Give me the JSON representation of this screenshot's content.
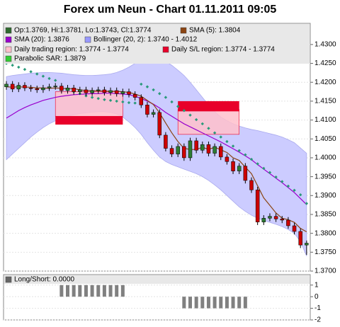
{
  "chart_data": [
    {
      "type": "candlestick",
      "title": "Forex um Neun - Chart 01.11.2011 09:05",
      "legend": [
        {
          "label": "Op:1.3769, Hi:1.3781, Lo:1.3743, Cl:1.3774",
          "color": "#2e6b2e"
        },
        {
          "label": "SMA (5): 1.3804",
          "color": "#8b4513"
        },
        {
          "label": "SMA (20): 1.3876",
          "color": "#9900cc"
        },
        {
          "label": "Bollinger (20, 2): 1.3740 - 1.4012",
          "color": "#9999ff"
        },
        {
          "label": "Daily trading region: 1.3774 - 1.3774",
          "color": "#ffc0cb"
        },
        {
          "label": "Daily S/L region: 1.3774 - 1.3774",
          "color": "#e8002a"
        },
        {
          "label": "Parabolic SAR: 1.3879",
          "color": "#33cc33"
        }
      ],
      "open": [
        1.4188,
        1.4195,
        1.4182,
        1.4192,
        1.4185,
        1.4183,
        1.418,
        1.4185,
        1.4188,
        1.419,
        1.4178,
        1.4185,
        1.4175,
        1.418,
        1.4172,
        1.4178,
        1.418,
        1.4173,
        1.4178,
        1.417,
        1.4175,
        1.4168,
        1.416,
        1.414,
        1.4115,
        1.412,
        1.406,
        1.4025,
        1.401,
        1.403,
        1.4,
        1.4045,
        1.402,
        1.4035,
        1.4012,
        1.403,
        1.4002,
        1.399,
        1.3965,
        1.3978,
        1.394,
        1.3915,
        1.383,
        1.384,
        1.3845,
        1.3838,
        1.3835,
        1.382,
        1.3805,
        1.3769
      ],
      "high": [
        1.4203,
        1.4203,
        1.42,
        1.42,
        1.4193,
        1.4191,
        1.4193,
        1.4196,
        1.4198,
        1.4198,
        1.4193,
        1.4193,
        1.4188,
        1.4188,
        1.4186,
        1.4188,
        1.4188,
        1.4186,
        1.4186,
        1.4183,
        1.4183,
        1.4176,
        1.4168,
        1.4148,
        1.4128,
        1.4128,
        1.4068,
        1.4033,
        1.4038,
        1.4038,
        1.4053,
        1.4053,
        1.4043,
        1.4043,
        1.4038,
        1.4038,
        1.401,
        1.3998,
        1.3986,
        1.3986,
        1.3948,
        1.3923,
        1.3848,
        1.3853,
        1.3853,
        1.3846,
        1.3843,
        1.3828,
        1.3813,
        1.3781
      ],
      "low": [
        1.418,
        1.4174,
        1.4174,
        1.4177,
        1.4175,
        1.4172,
        1.4172,
        1.4177,
        1.418,
        1.417,
        1.417,
        1.4167,
        1.4167,
        1.4164,
        1.4164,
        1.417,
        1.4165,
        1.4165,
        1.4162,
        1.4162,
        1.416,
        1.4152,
        1.4132,
        1.4107,
        1.4107,
        1.4052,
        1.4017,
        1.4002,
        1.4002,
        1.3992,
        1.3992,
        1.4012,
        1.4012,
        1.4004,
        1.4004,
        1.3994,
        1.3982,
        1.3957,
        1.3957,
        1.3932,
        1.3907,
        1.3822,
        1.3822,
        1.3832,
        1.383,
        1.3827,
        1.3812,
        1.3797,
        1.3761,
        1.3743
      ],
      "close": [
        1.4195,
        1.4182,
        1.4192,
        1.4185,
        1.4183,
        1.418,
        1.4185,
        1.4188,
        1.419,
        1.4178,
        1.4185,
        1.4175,
        1.418,
        1.4172,
        1.4178,
        1.418,
        1.4173,
        1.4178,
        1.417,
        1.4175,
        1.4168,
        1.416,
        1.414,
        1.4115,
        1.412,
        1.406,
        1.4025,
        1.401,
        1.403,
        1.4,
        1.4045,
        1.402,
        1.4035,
        1.4012,
        1.403,
        1.4002,
        1.399,
        1.3965,
        1.3978,
        1.394,
        1.3915,
        1.383,
        1.384,
        1.3845,
        1.3838,
        1.3835,
        1.382,
        1.3805,
        1.3769,
        1.3774
      ],
      "up_color": "#2e7d32",
      "down_color": "#cc0000",
      "sma5": [
        1.4188,
        1.4187,
        1.4188,
        1.4187,
        1.4187,
        1.4185,
        1.4185,
        1.4184,
        1.4185,
        1.4184,
        1.4183,
        1.4183,
        1.418,
        1.4178,
        1.4178,
        1.4177,
        1.4177,
        1.4176,
        1.4176,
        1.4175,
        1.4173,
        1.4169,
        1.4163,
        1.4152,
        1.4141,
        1.4119,
        1.4092,
        1.4066,
        1.4043,
        1.4025,
        1.4022,
        1.4022,
        1.4028,
        1.4022,
        1.4028,
        1.4021,
        1.4014,
        1.4,
        1.3993,
        1.3975,
        1.3958,
        1.3926,
        1.3894,
        1.3874,
        1.3854,
        1.384,
        1.3836,
        1.3829,
        1.3813,
        1.3804
      ],
      "sma20": [
        1.4105,
        1.4115,
        1.4125,
        1.4133,
        1.414,
        1.4146,
        1.4152,
        1.4156,
        1.416,
        1.4163,
        1.4165,
        1.4167,
        1.4168,
        1.4169,
        1.417,
        1.417,
        1.4171,
        1.4171,
        1.417,
        1.4169,
        1.4167,
        1.4163,
        1.4157,
        1.415,
        1.4142,
        1.4132,
        1.412,
        1.411,
        1.41,
        1.409,
        1.4082,
        1.4074,
        1.4066,
        1.4058,
        1.405,
        1.4042,
        1.4033,
        1.4024,
        1.4015,
        1.4005,
        1.3995,
        1.3982,
        1.397,
        1.3958,
        1.3946,
        1.3934,
        1.3921,
        1.3908,
        1.3892,
        1.3876
      ],
      "bb_upper": [
        1.4215,
        1.4218,
        1.422,
        1.4222,
        1.4224,
        1.4225,
        1.4226,
        1.4226,
        1.4225,
        1.4224,
        1.4222,
        1.422,
        1.4219,
        1.4218,
        1.4218,
        1.4219,
        1.422,
        1.4222,
        1.4226,
        1.4232,
        1.424,
        1.425,
        1.4258,
        1.4263,
        1.4265,
        1.4262,
        1.4255,
        1.4245,
        1.4232,
        1.4218,
        1.42,
        1.418,
        1.416,
        1.414,
        1.4122,
        1.4108,
        1.4098,
        1.409,
        1.4084,
        1.4079,
        1.4075,
        1.4072,
        1.4068,
        1.4064,
        1.406,
        1.4055,
        1.4048,
        1.404,
        1.4026,
        1.4012
      ],
      "bb_lower": [
        1.3995,
        1.401,
        1.4025,
        1.404,
        1.4055,
        1.4068,
        1.408,
        1.409,
        1.4098,
        1.4105,
        1.411,
        1.4114,
        1.4117,
        1.4119,
        1.4121,
        1.4122,
        1.4122,
        1.412,
        1.4116,
        1.4108,
        1.4095,
        1.408,
        1.4062,
        1.404,
        1.402,
        1.4002,
        1.399,
        1.3982,
        1.3976,
        1.397,
        1.3964,
        1.3958,
        1.395,
        1.394,
        1.3928,
        1.3915,
        1.39,
        1.3885,
        1.387,
        1.3858,
        1.3848,
        1.384,
        1.3834,
        1.3829,
        1.3824,
        1.3818,
        1.381,
        1.38,
        1.3778,
        1.374
      ],
      "sar": [
        1.425,
        1.4245,
        1.424,
        1.4234,
        1.4228,
        1.4222,
        1.4216,
        1.421,
        1.4205,
        1.4185,
        1.418,
        1.4175,
        1.417,
        1.4164,
        1.416,
        1.4157,
        1.4154,
        1.4152,
        1.415,
        1.4148,
        1.4146,
        1.4145,
        1.4195,
        1.4188,
        1.418,
        1.417,
        1.416,
        1.4148,
        1.4136,
        1.4125,
        1.4113,
        1.4101,
        1.409,
        1.4078,
        1.4066,
        1.4055,
        1.4043,
        1.4031,
        1.4019,
        1.4008,
        1.3996,
        1.3984,
        1.3972,
        1.3961,
        1.3949,
        1.3937,
        1.3925,
        1.3914,
        1.3902,
        1.3879
      ],
      "sma5_color": "#8b4513",
      "sma20_color": "#9900cc",
      "band_color": "#ccccff",
      "sar_color": "#2a9a7a",
      "regions": [
        {
          "start": 8,
          "end": 19,
          "trade": [
            1.411,
            1.4175
          ],
          "sl": [
            1.4088,
            1.411
          ]
        },
        {
          "start": 28,
          "end": 38,
          "trade": [
            1.4062,
            1.4128
          ],
          "sl": [
            1.4123,
            1.415
          ]
        }
      ],
      "trade_color": "#ffc0cb",
      "sl_color": "#e8002a",
      "ylim": [
        1.37,
        1.4356
      ],
      "yticks": [
        {
          "value": 1.43,
          "label": "1.4300"
        },
        {
          "value": 1.425,
          "label": "1.4250"
        },
        {
          "value": 1.42,
          "label": "1.4200"
        },
        {
          "value": 1.415,
          "label": "1.4150"
        },
        {
          "value": 1.41,
          "label": "1.4100"
        },
        {
          "value": 1.405,
          "label": "1.4050"
        },
        {
          "value": 1.4,
          "label": "1.4000"
        },
        {
          "value": 1.395,
          "label": "1.3950"
        },
        {
          "value": 1.39,
          "label": "1.3900"
        },
        {
          "value": 1.385,
          "label": "1.3850"
        },
        {
          "value": 1.38,
          "label": "1.3800"
        },
        {
          "value": 1.375,
          "label": "1.3750"
        },
        {
          "value": 1.37,
          "label": "1.3700"
        }
      ],
      "grid": true
    },
    {
      "type": "bar",
      "legend": [
        {
          "label": "Long/Short: 0.0000",
          "color": "#666666"
        }
      ],
      "values": [
        0,
        0,
        0,
        0,
        0,
        0,
        0,
        0,
        0,
        1,
        1,
        1,
        1,
        1,
        1,
        1,
        1,
        1,
        1,
        1,
        0,
        0,
        0,
        0,
        0,
        0,
        0,
        0,
        0,
        -1,
        -1,
        -1,
        -1,
        -1,
        -1,
        -1,
        -1,
        -1,
        -1,
        -1,
        0,
        0,
        0,
        0,
        0,
        0,
        0,
        0,
        0,
        0
      ],
      "color": "#808080",
      "ylim": [
        -2,
        1.9
      ],
      "yticks": [
        1,
        0,
        -1,
        -2
      ],
      "grid": true
    }
  ]
}
